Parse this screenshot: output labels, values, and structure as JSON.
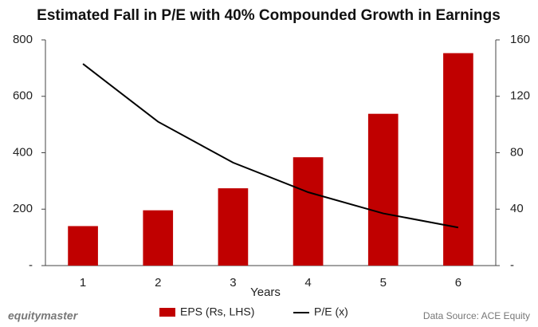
{
  "chart_data": {
    "type": "bar-line",
    "title": "Estimated Fall in P/E with 40% Compounded Growth in Earnings",
    "x_label": "Years",
    "categories": [
      "1",
      "2",
      "3",
      "4",
      "5",
      "6"
    ],
    "series": [
      {
        "name": "EPS (Rs, LHS)",
        "type": "bar",
        "color": "#c00000",
        "values": [
          140,
          196,
          274,
          384,
          538,
          753
        ]
      },
      {
        "name": "P/E (x)",
        "type": "line",
        "axis": "y2",
        "color": "#000000",
        "values": [
          143,
          102,
          73,
          52,
          37,
          27
        ]
      }
    ],
    "ylim": [
      0,
      800
    ],
    "yticks": [
      {
        "value": 0,
        "label": "-"
      },
      200,
      400,
      600,
      800
    ],
    "y2lim": [
      0,
      160
    ],
    "y2ticks": [
      {
        "value": 0,
        "label": "-"
      },
      40,
      80,
      120,
      160
    ],
    "brand": "equitymaster",
    "source": "Data Source: ACE Equity"
  }
}
